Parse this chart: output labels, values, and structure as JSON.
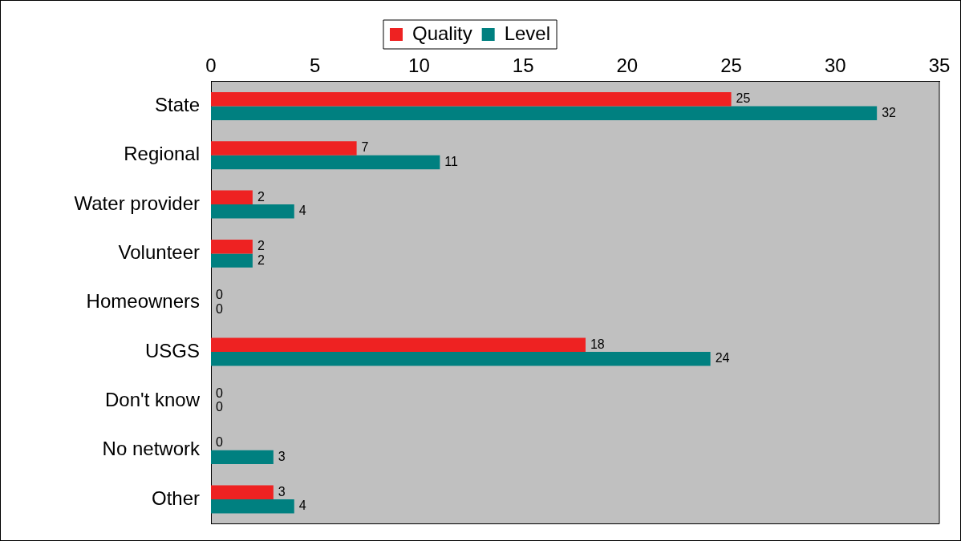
{
  "chart_data": {
    "type": "bar",
    "orientation": "horizontal",
    "categories": [
      "State",
      "Regional",
      "Water provider",
      "Volunteer",
      "Homeowners",
      "USGS",
      "Don't know",
      "No network",
      "Other"
    ],
    "series": [
      {
        "name": "Quality",
        "color": "#ee2222",
        "values": [
          25,
          7,
          2,
          2,
          0,
          18,
          0,
          0,
          3
        ]
      },
      {
        "name": "Level",
        "color": "#008080",
        "values": [
          32,
          11,
          4,
          2,
          0,
          24,
          0,
          3,
          4
        ]
      }
    ],
    "xlim": [
      0,
      35
    ],
    "xticks": [
      0,
      5,
      10,
      15,
      20,
      25,
      30,
      35
    ],
    "grid": false,
    "legend": "top",
    "data_labels": true
  }
}
